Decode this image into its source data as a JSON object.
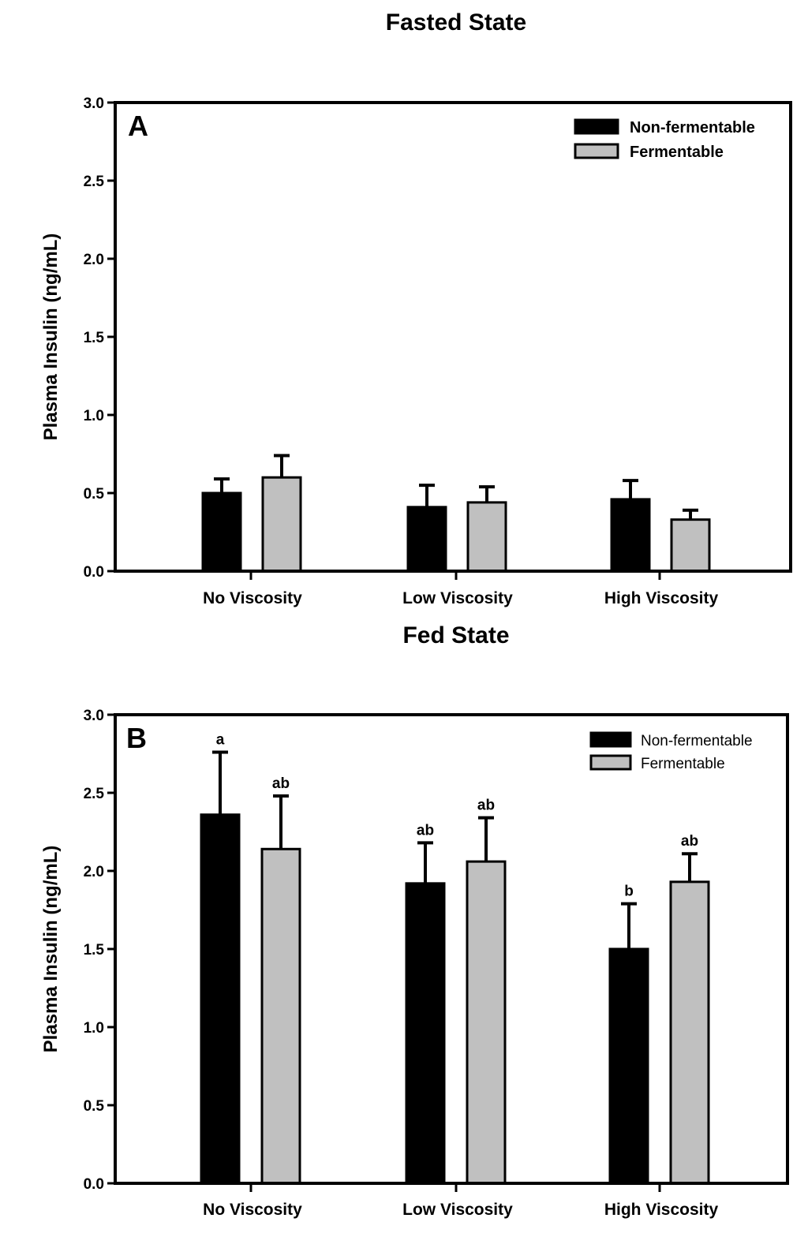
{
  "chart_data": [
    {
      "type": "bar",
      "title": "Fasted State",
      "panel": "A",
      "xlabel": "",
      "ylabel": "Plasma Insulin (ng/mL)",
      "ylim": [
        0,
        3.0
      ],
      "yticks": [
        "0.0",
        "0.5",
        "1.0",
        "1.5",
        "2.0",
        "2.5",
        "3.0"
      ],
      "categories": [
        "No Viscosity",
        "Low Viscosity",
        "High Viscosity"
      ],
      "legend_position": "top-right",
      "series": [
        {
          "name": "Non-fermentable",
          "color": "#000000",
          "values": [
            0.5,
            0.41,
            0.46
          ],
          "errors": [
            0.09,
            0.14,
            0.12
          ],
          "labels": [
            "",
            "",
            ""
          ]
        },
        {
          "name": "Fermentable",
          "color": "#c0c0c0",
          "values": [
            0.6,
            0.44,
            0.33
          ],
          "errors": [
            0.14,
            0.1,
            0.06
          ],
          "labels": [
            "",
            "",
            ""
          ]
        }
      ]
    },
    {
      "type": "bar",
      "title": "Fed State",
      "panel": "B",
      "xlabel": "",
      "ylabel": "Plasma Insulin (ng/mL)",
      "ylim": [
        0,
        3.0
      ],
      "yticks": [
        "0.0",
        "0.5",
        "1.0",
        "1.5",
        "2.0",
        "2.5",
        "3.0"
      ],
      "categories": [
        "No Viscosity",
        "Low Viscosity",
        "High Viscosity"
      ],
      "legend_position": "top-right",
      "series": [
        {
          "name": "Non-fermentable",
          "color": "#000000",
          "values": [
            2.36,
            1.92,
            1.5
          ],
          "errors": [
            0.4,
            0.26,
            0.29
          ],
          "labels": [
            "a",
            "ab",
            "b"
          ]
        },
        {
          "name": "Fermentable",
          "color": "#c0c0c0",
          "values": [
            2.14,
            2.06,
            1.93
          ],
          "errors": [
            0.34,
            0.28,
            0.18
          ],
          "labels": [
            "ab",
            "ab",
            "ab"
          ]
        }
      ]
    }
  ]
}
